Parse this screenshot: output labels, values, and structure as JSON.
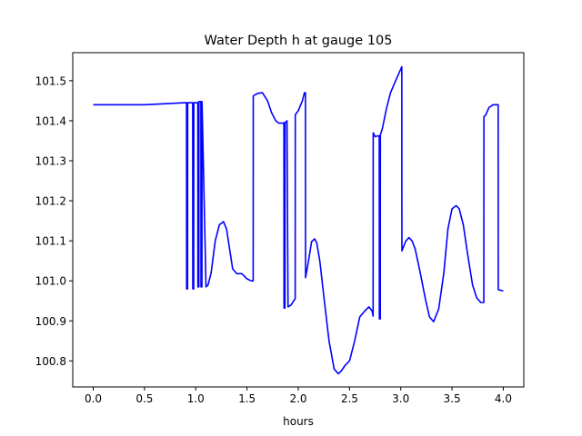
{
  "chart_data": {
    "type": "line",
    "title": "Water Depth h at gauge 105",
    "xlabel": "hours",
    "ylabel": "",
    "xlim": [
      -0.2,
      4.2
    ],
    "ylim": [
      100.735,
      101.57
    ],
    "grid": false,
    "legend": "none",
    "xticks": [
      0.0,
      0.5,
      1.0,
      1.5,
      2.0,
      2.5,
      3.0,
      3.5,
      4.0
    ],
    "xtick_labels": [
      "0.0",
      "0.5",
      "1.0",
      "1.5",
      "2.0",
      "2.5",
      "3.0",
      "3.5",
      "4.0"
    ],
    "yticks": [
      100.8,
      100.9,
      101.0,
      101.1,
      101.2,
      101.3,
      101.4,
      101.5
    ],
    "ytick_labels": [
      "100.8",
      "100.9",
      "101.0",
      "101.1",
      "101.2",
      "101.3",
      "101.4",
      "101.5"
    ],
    "series": [
      {
        "color": "#0000ff",
        "x": [
          0.0,
          0.5,
          0.9,
          0.91,
          0.911,
          0.92,
          0.921,
          0.97,
          0.971,
          0.98,
          0.981,
          1.02,
          1.021,
          1.03,
          1.031,
          1.05,
          1.051,
          1.06,
          1.061,
          1.1,
          1.12,
          1.15,
          1.19,
          1.23,
          1.27,
          1.3,
          1.33,
          1.36,
          1.4,
          1.45,
          1.5,
          1.54,
          1.56,
          1.561,
          1.6,
          1.65,
          1.7,
          1.74,
          1.78,
          1.81,
          1.85,
          1.86,
          1.861,
          1.87,
          1.871,
          1.89,
          1.9,
          1.93,
          1.96,
          1.97,
          1.971,
          2.0,
          2.04,
          2.06,
          2.07,
          2.071,
          2.1,
          2.13,
          2.16,
          2.18,
          2.21,
          2.25,
          2.3,
          2.35,
          2.39,
          2.42,
          2.46,
          2.5,
          2.55,
          2.6,
          2.65,
          2.69,
          2.72,
          2.73,
          2.731,
          2.75,
          2.77,
          2.79,
          2.791,
          2.8,
          2.801,
          2.82,
          2.86,
          2.9,
          2.95,
          3.01,
          3.011,
          3.05,
          3.08,
          3.11,
          3.14,
          3.19,
          3.24,
          3.28,
          3.32,
          3.37,
          3.42,
          3.46,
          3.5,
          3.54,
          3.57,
          3.61,
          3.65,
          3.7,
          3.74,
          3.78,
          3.81,
          3.811,
          3.83,
          3.86,
          3.9,
          3.93,
          3.95,
          3.951,
          4.0
        ],
        "y": [
          101.44,
          101.44,
          101.445,
          101.445,
          100.98,
          100.98,
          101.445,
          101.445,
          100.98,
          100.98,
          101.445,
          101.445,
          100.985,
          100.985,
          101.448,
          101.448,
          100.985,
          100.985,
          101.448,
          100.985,
          100.99,
          101.02,
          101.1,
          101.14,
          101.148,
          101.13,
          101.08,
          101.03,
          101.018,
          101.018,
          101.005,
          101.0,
          101.0,
          101.462,
          101.468,
          101.47,
          101.45,
          101.42,
          101.4,
          101.394,
          101.394,
          101.395,
          100.932,
          100.932,
          101.395,
          101.4,
          100.935,
          100.94,
          100.952,
          100.955,
          101.415,
          101.425,
          101.45,
          101.47,
          101.47,
          101.008,
          101.05,
          101.098,
          101.105,
          101.095,
          101.05,
          100.96,
          100.85,
          100.78,
          100.768,
          100.775,
          100.79,
          100.8,
          100.85,
          100.91,
          100.925,
          100.935,
          100.925,
          100.912,
          101.37,
          101.36,
          101.362,
          101.362,
          100.905,
          100.905,
          101.365,
          101.38,
          101.43,
          101.47,
          101.5,
          101.535,
          101.075,
          101.1,
          101.108,
          101.1,
          101.08,
          101.02,
          100.955,
          100.91,
          100.898,
          100.93,
          101.02,
          101.13,
          101.18,
          101.188,
          101.18,
          101.14,
          101.07,
          100.99,
          100.958,
          100.946,
          100.946,
          101.41,
          101.415,
          101.433,
          101.44,
          101.44,
          101.44,
          100.978,
          100.975
        ]
      }
    ]
  }
}
